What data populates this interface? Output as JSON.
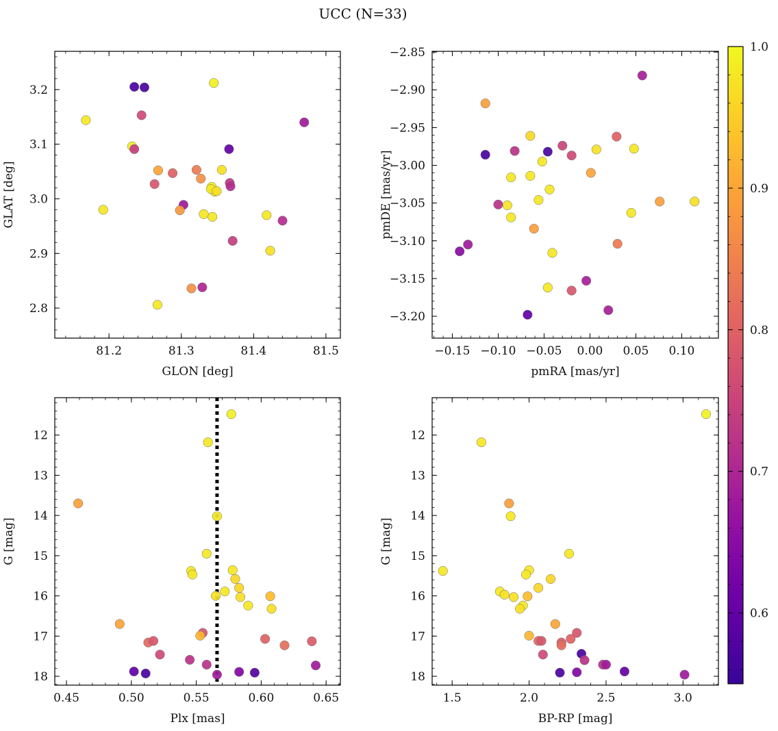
{
  "figure": {
    "title": "UCC (N=33)"
  },
  "colorbar": {
    "ticks": [
      0.6,
      0.7,
      0.8,
      0.9,
      1.0
    ],
    "tick_labels": [
      "0.6",
      "0.7",
      "0.8",
      "0.9",
      "1.0"
    ],
    "range": [
      0.55,
      1.0
    ],
    "colormap": "plasma"
  },
  "chart_data": [
    {
      "type": "scatter",
      "id": "ax1",
      "xlabel": "GLON [deg]",
      "ylabel": "GLAT [deg]",
      "xlim": [
        81.125,
        81.52
      ],
      "ylim": [
        2.745,
        3.27
      ],
      "xticks": [
        81.2,
        81.3,
        81.4,
        81.5
      ],
      "xtick_labels": [
        "81.2",
        "81.3",
        "81.4",
        "81.5"
      ],
      "yticks": [
        2.8,
        2.9,
        3.0,
        3.1,
        3.2
      ],
      "ytick_labels": [
        "2.8",
        "2.9",
        "3.0",
        "3.1",
        "3.2"
      ],
      "y_inverted": false,
      "points": [
        {
          "x": 81.235,
          "y": 3.205,
          "c": 0.57
        },
        {
          "x": 81.249,
          "y": 3.204,
          "c": 0.57
        },
        {
          "x": 81.345,
          "y": 3.212,
          "c": 0.99
        },
        {
          "x": 81.245,
          "y": 3.153,
          "c": 0.76
        },
        {
          "x": 81.168,
          "y": 3.144,
          "c": 0.98
        },
        {
          "x": 81.47,
          "y": 3.14,
          "c": 0.68
        },
        {
          "x": 81.232,
          "y": 3.096,
          "c": 0.99
        },
        {
          "x": 81.235,
          "y": 3.091,
          "c": 0.74
        },
        {
          "x": 81.366,
          "y": 3.091,
          "c": 0.6
        },
        {
          "x": 81.268,
          "y": 3.052,
          "c": 0.9
        },
        {
          "x": 81.321,
          "y": 3.053,
          "c": 0.84
        },
        {
          "x": 81.356,
          "y": 3.053,
          "c": 0.97
        },
        {
          "x": 81.288,
          "y": 3.047,
          "c": 0.8
        },
        {
          "x": 81.327,
          "y": 3.037,
          "c": 0.87
        },
        {
          "x": 81.263,
          "y": 3.027,
          "c": 0.78
        },
        {
          "x": 81.367,
          "y": 3.029,
          "c": 0.73
        },
        {
          "x": 81.368,
          "y": 3.023,
          "c": 0.71
        },
        {
          "x": 81.342,
          "y": 3.022,
          "c": 0.99
        },
        {
          "x": 81.346,
          "y": 3.013,
          "c": 0.98
        },
        {
          "x": 81.303,
          "y": 2.989,
          "c": 0.68
        },
        {
          "x": 81.192,
          "y": 2.98,
          "c": 0.98
        },
        {
          "x": 81.298,
          "y": 2.979,
          "c": 0.88
        },
        {
          "x": 81.331,
          "y": 2.972,
          "c": 0.98
        },
        {
          "x": 81.343,
          "y": 2.967,
          "c": 0.98
        },
        {
          "x": 81.418,
          "y": 2.97,
          "c": 0.98
        },
        {
          "x": 81.44,
          "y": 2.96,
          "c": 0.71
        },
        {
          "x": 81.371,
          "y": 2.923,
          "c": 0.74
        },
        {
          "x": 81.423,
          "y": 2.905,
          "c": 0.97
        },
        {
          "x": 81.314,
          "y": 2.836,
          "c": 0.87
        },
        {
          "x": 81.329,
          "y": 2.838,
          "c": 0.7
        },
        {
          "x": 81.267,
          "y": 2.806,
          "c": 0.98
        },
        {
          "x": 81.341,
          "y": 3.018,
          "c": 0.98
        },
        {
          "x": 81.349,
          "y": 3.014,
          "c": 0.97
        }
      ]
    },
    {
      "type": "scatter",
      "id": "ax2",
      "xlabel": "pmRA [mas/yr]",
      "ylabel": "pmDE [mas/yr]",
      "xlim": [
        -0.172,
        0.14
      ],
      "ylim": [
        -3.229,
        -2.849
      ],
      "xticks": [
        -0.15,
        -0.1,
        -0.05,
        0.0,
        0.05,
        0.1
      ],
      "xtick_labels": [
        "−0.15",
        "−0.10",
        "−0.05",
        "0.00",
        "0.05",
        "0.10"
      ],
      "yticks": [
        -3.2,
        -3.15,
        -3.1,
        -3.05,
        -3.0,
        -2.95,
        -2.9,
        -2.85
      ],
      "ytick_labels": [
        "−3.20",
        "−3.15",
        "−3.10",
        "−3.05",
        "−3.00",
        "−2.95",
        "−2.90",
        "−2.85"
      ],
      "y_inverted": false,
      "points": [
        {
          "x": 0.057,
          "y": -2.881,
          "c": 0.69
        },
        {
          "x": -0.114,
          "y": -2.918,
          "c": 0.89
        },
        {
          "x": -0.065,
          "y": -2.961,
          "c": 0.96
        },
        {
          "x": 0.029,
          "y": -2.962,
          "c": 0.8
        },
        {
          "x": -0.03,
          "y": -2.974,
          "c": 0.75
        },
        {
          "x": 0.007,
          "y": -2.979,
          "c": 0.97
        },
        {
          "x": 0.048,
          "y": -2.978,
          "c": 0.98
        },
        {
          "x": -0.082,
          "y": -2.981,
          "c": 0.72
        },
        {
          "x": -0.046,
          "y": -2.982,
          "c": 0.57
        },
        {
          "x": -0.114,
          "y": -2.986,
          "c": 0.57
        },
        {
          "x": -0.02,
          "y": -2.987,
          "c": 0.76
        },
        {
          "x": -0.052,
          "y": -2.995,
          "c": 0.98
        },
        {
          "x": 0.001,
          "y": -3.01,
          "c": 0.9
        },
        {
          "x": -0.065,
          "y": -3.014,
          "c": 0.98
        },
        {
          "x": -0.086,
          "y": -3.016,
          "c": 0.98
        },
        {
          "x": -0.044,
          "y": -3.032,
          "c": 0.98
        },
        {
          "x": -0.056,
          "y": -3.046,
          "c": 0.98
        },
        {
          "x": 0.076,
          "y": -3.048,
          "c": 0.89
        },
        {
          "x": 0.114,
          "y": -3.048,
          "c": 0.97
        },
        {
          "x": -0.1,
          "y": -3.052,
          "c": 0.72
        },
        {
          "x": -0.09,
          "y": -3.053,
          "c": 0.98
        },
        {
          "x": 0.045,
          "y": -3.063,
          "c": 0.98
        },
        {
          "x": -0.086,
          "y": -3.069,
          "c": 0.98
        },
        {
          "x": -0.061,
          "y": -3.084,
          "c": 0.89
        },
        {
          "x": 0.03,
          "y": -3.104,
          "c": 0.84
        },
        {
          "x": -0.133,
          "y": -3.105,
          "c": 0.68
        },
        {
          "x": -0.142,
          "y": -3.114,
          "c": 0.65
        },
        {
          "x": -0.041,
          "y": -3.116,
          "c": 0.98
        },
        {
          "x": -0.046,
          "y": -3.162,
          "c": 0.98
        },
        {
          "x": -0.004,
          "y": -3.153,
          "c": 0.69
        },
        {
          "x": -0.02,
          "y": -3.166,
          "c": 0.78
        },
        {
          "x": 0.02,
          "y": -3.192,
          "c": 0.69
        },
        {
          "x": -0.068,
          "y": -3.198,
          "c": 0.6
        }
      ]
    },
    {
      "type": "scatter",
      "id": "ax3",
      "xlabel": "Plx [mas]",
      "ylabel": "G [mag]",
      "xlim": [
        0.441,
        0.661
      ],
      "ylim": [
        11.07,
        18.22
      ],
      "xticks": [
        0.45,
        0.5,
        0.55,
        0.6,
        0.65
      ],
      "xtick_labels": [
        "0.45",
        "0.50",
        "0.55",
        "0.60",
        "0.65"
      ],
      "yticks": [
        12,
        13,
        14,
        15,
        16,
        17,
        18
      ],
      "ytick_labels": [
        "12",
        "13",
        "14",
        "15",
        "16",
        "17",
        "18"
      ],
      "y_inverted": true,
      "vline": {
        "x": 0.566,
        "style": "dotted",
        "color": "#000000"
      },
      "points": [
        {
          "x": 0.577,
          "y": 11.48,
          "c": 0.99
        },
        {
          "x": 0.559,
          "y": 12.18,
          "c": 0.98
        },
        {
          "x": 0.459,
          "y": 13.7,
          "c": 0.89
        },
        {
          "x": 0.566,
          "y": 14.02,
          "c": 0.98
        },
        {
          "x": 0.558,
          "y": 14.95,
          "c": 0.98
        },
        {
          "x": 0.546,
          "y": 15.38,
          "c": 0.98
        },
        {
          "x": 0.547,
          "y": 15.47,
          "c": 0.98
        },
        {
          "x": 0.578,
          "y": 15.36,
          "c": 0.98
        },
        {
          "x": 0.58,
          "y": 15.58,
          "c": 0.96
        },
        {
          "x": 0.583,
          "y": 15.8,
          "c": 0.96
        },
        {
          "x": 0.572,
          "y": 15.89,
          "c": 0.98
        },
        {
          "x": 0.565,
          "y": 16.0,
          "c": 0.97
        },
        {
          "x": 0.584,
          "y": 16.03,
          "c": 0.97
        },
        {
          "x": 0.607,
          "y": 16.01,
          "c": 0.93
        },
        {
          "x": 0.59,
          "y": 16.24,
          "c": 0.98
        },
        {
          "x": 0.608,
          "y": 16.32,
          "c": 0.97
        },
        {
          "x": 0.491,
          "y": 16.7,
          "c": 0.9
        },
        {
          "x": 0.555,
          "y": 16.92,
          "c": 0.78
        },
        {
          "x": 0.553,
          "y": 16.99,
          "c": 0.92
        },
        {
          "x": 0.603,
          "y": 17.07,
          "c": 0.8
        },
        {
          "x": 0.513,
          "y": 17.16,
          "c": 0.81
        },
        {
          "x": 0.517,
          "y": 17.12,
          "c": 0.78
        },
        {
          "x": 0.639,
          "y": 17.13,
          "c": 0.79
        },
        {
          "x": 0.618,
          "y": 17.23,
          "c": 0.82
        },
        {
          "x": 0.522,
          "y": 17.46,
          "c": 0.76
        },
        {
          "x": 0.545,
          "y": 17.59,
          "c": 0.72
        },
        {
          "x": 0.558,
          "y": 17.71,
          "c": 0.72
        },
        {
          "x": 0.642,
          "y": 17.73,
          "c": 0.68
        },
        {
          "x": 0.502,
          "y": 17.88,
          "c": 0.6
        },
        {
          "x": 0.511,
          "y": 17.93,
          "c": 0.57
        },
        {
          "x": 0.583,
          "y": 17.89,
          "c": 0.64
        },
        {
          "x": 0.595,
          "y": 17.91,
          "c": 0.58
        },
        {
          "x": 0.566,
          "y": 17.96,
          "c": 0.68
        }
      ]
    },
    {
      "type": "scatter",
      "id": "ax4",
      "xlabel": "BP-RP [mag]",
      "ylabel": "G [mag]",
      "xlim": [
        1.37,
        3.23
      ],
      "ylim": [
        11.07,
        18.22
      ],
      "xticks": [
        1.5,
        2.0,
        2.5,
        3.0
      ],
      "xtick_labels": [
        "1.5",
        "2.0",
        "2.5",
        "3.0"
      ],
      "yticks": [
        12,
        13,
        14,
        15,
        16,
        17,
        18
      ],
      "ytick_labels": [
        "12",
        "13",
        "14",
        "15",
        "16",
        "17",
        "18"
      ],
      "y_inverted": true,
      "points": [
        {
          "x": 3.15,
          "y": 11.48,
          "c": 0.99
        },
        {
          "x": 1.69,
          "y": 12.18,
          "c": 0.98
        },
        {
          "x": 1.87,
          "y": 13.7,
          "c": 0.89
        },
        {
          "x": 1.88,
          "y": 14.02,
          "c": 0.98
        },
        {
          "x": 2.26,
          "y": 14.95,
          "c": 0.98
        },
        {
          "x": 1.44,
          "y": 15.38,
          "c": 0.98
        },
        {
          "x": 2.0,
          "y": 15.36,
          "c": 0.98
        },
        {
          "x": 1.98,
          "y": 15.47,
          "c": 0.98
        },
        {
          "x": 2.14,
          "y": 15.58,
          "c": 0.96
        },
        {
          "x": 2.06,
          "y": 15.8,
          "c": 0.96
        },
        {
          "x": 1.81,
          "y": 15.89,
          "c": 0.98
        },
        {
          "x": 1.84,
          "y": 15.97,
          "c": 0.97
        },
        {
          "x": 1.9,
          "y": 16.03,
          "c": 0.97
        },
        {
          "x": 1.99,
          "y": 16.01,
          "c": 0.93
        },
        {
          "x": 1.96,
          "y": 16.24,
          "c": 0.98
        },
        {
          "x": 1.94,
          "y": 16.32,
          "c": 0.97
        },
        {
          "x": 2.17,
          "y": 16.7,
          "c": 0.9
        },
        {
          "x": 2.31,
          "y": 16.92,
          "c": 0.78
        },
        {
          "x": 2.0,
          "y": 16.99,
          "c": 0.92
        },
        {
          "x": 2.27,
          "y": 17.07,
          "c": 0.8
        },
        {
          "x": 2.06,
          "y": 17.12,
          "c": 0.81
        },
        {
          "x": 2.08,
          "y": 17.12,
          "c": 0.78
        },
        {
          "x": 2.21,
          "y": 17.16,
          "c": 0.79
        },
        {
          "x": 2.21,
          "y": 17.23,
          "c": 0.82
        },
        {
          "x": 2.34,
          "y": 17.44,
          "c": 0.57
        },
        {
          "x": 2.09,
          "y": 17.46,
          "c": 0.76
        },
        {
          "x": 2.36,
          "y": 17.6,
          "c": 0.72
        },
        {
          "x": 2.48,
          "y": 17.71,
          "c": 0.72
        },
        {
          "x": 2.5,
          "y": 17.71,
          "c": 0.68
        },
        {
          "x": 2.62,
          "y": 17.88,
          "c": 0.6
        },
        {
          "x": 2.2,
          "y": 17.91,
          "c": 0.57
        },
        {
          "x": 2.31,
          "y": 17.9,
          "c": 0.64
        },
        {
          "x": 3.01,
          "y": 17.96,
          "c": 0.68
        }
      ]
    }
  ]
}
